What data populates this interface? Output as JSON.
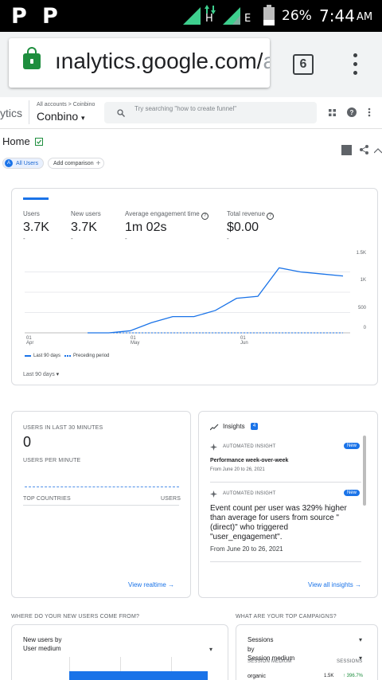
{
  "status_bar": {
    "left_icons": [
      "P",
      "P"
    ],
    "network_h": "H",
    "network_e": "E",
    "battery": "26%",
    "time": "7:44",
    "ampm": "AM"
  },
  "browser": {
    "url_main": "ınalytics.google.com/",
    "url_tail": "a",
    "tab_count": "6"
  },
  "ga_header": {
    "product_fragment": "ytics",
    "breadcrumb": "All accounts > Coinbino",
    "property": "Conbino",
    "search_placeholder": "Try searching \"how to create funnel\""
  },
  "page": {
    "title": "Home",
    "chip_all_users_avatar": "A",
    "chip_all_users": "All Users",
    "chip_add_comparison": "Add comparison"
  },
  "overview": {
    "metrics": [
      {
        "label": "Users",
        "value": "3.7K",
        "delta": "-"
      },
      {
        "label": "New users",
        "value": "3.7K",
        "delta": "-"
      },
      {
        "label": "Average engagement time",
        "value": "1m 02s",
        "delta": "-"
      },
      {
        "label": "Total revenue",
        "value": "$0.00",
        "delta": "-"
      }
    ],
    "legend_current": "Last 90 days",
    "legend_previous": "Preceding period",
    "date_range": "Last 90 days"
  },
  "chart_data": {
    "type": "line",
    "x": [
      "Apr 01",
      "Apr 15",
      "Apr 29",
      "May 06",
      "May 13",
      "May 20",
      "May 27",
      "Jun 03",
      "Jun 10",
      "Jun 17",
      "Jun 20",
      "Jun 24",
      "Jun 26"
    ],
    "series": [
      {
        "name": "Last 90 days",
        "values": [
          0,
          0,
          50,
          250,
          400,
          400,
          550,
          850,
          900,
          1600,
          1500,
          1450,
          1400
        ]
      },
      {
        "name": "Preceding period",
        "values": [
          0,
          0,
          0,
          0,
          0,
          0,
          0,
          0,
          0,
          0,
          0,
          0,
          0
        ]
      }
    ],
    "y_ticks": [
      "1.5K",
      "1K",
      "500",
      "0"
    ],
    "x_ticks": [
      {
        "day": "01",
        "month": "Apr"
      },
      {
        "day": "01",
        "month": "May"
      },
      {
        "day": "01",
        "month": "Jun"
      }
    ],
    "ylim": [
      0,
      2000
    ],
    "grid": true,
    "legend": "bottom-left",
    "colors": {
      "current": "#1a73e8",
      "previous": "#1a73e8"
    }
  },
  "realtime": {
    "users_label": "USERS IN LAST 30 MINUTES",
    "users_value": "0",
    "per_minute_label": "USERS PER MINUTE",
    "countries_label": "TOP COUNTRIES",
    "users_col": "USERS",
    "link": "View realtime"
  },
  "insights": {
    "title": "Insights",
    "count": "4",
    "items": [
      {
        "tag": "AUTOMATED INSIGHT",
        "badge": "New",
        "headline": "Performance week-over-week",
        "date": "From June 20 to 26, 2021"
      },
      {
        "tag": "AUTOMATED INSIGHT",
        "badge": "New",
        "headline": "Event count per user was 329% higher than average for users from source \"(direct)\" who triggered \"user_engagement\".",
        "date": "From June 20 to 26, 2021"
      }
    ],
    "link": "View all insights"
  },
  "new_users_section": {
    "title": "WHERE DO YOUR NEW USERS COME FROM?",
    "card_title_line1": "New users by",
    "card_title_line2": "User medium"
  },
  "campaigns_section": {
    "title": "WHAT ARE YOUR TOP CAMPAIGNS?",
    "card_line1": "Sessions",
    "card_line2": "by",
    "card_line3": "Session medium",
    "col_medium": "SESSION MEDIUM",
    "col_sessions": "SESSIONS",
    "row_label": "organic",
    "row_value": "1.5K",
    "row_change": "↑ 396.7%"
  }
}
